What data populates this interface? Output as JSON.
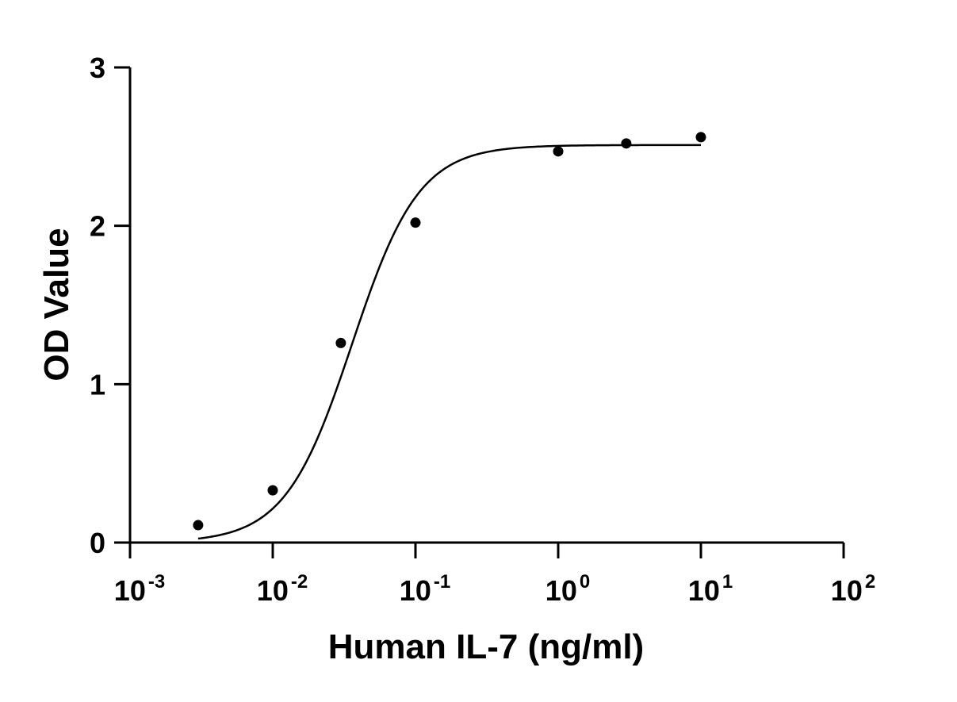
{
  "chart_data": {
    "type": "scatter",
    "title": "",
    "xlabel": "Human IL-7 (ng/ml)",
    "ylabel": "OD Value",
    "x_scale": "log10",
    "xlim": [
      0.001,
      100
    ],
    "ylim": [
      0,
      3
    ],
    "x_ticks": [
      {
        "value": 0.001,
        "base": "10",
        "exp": "-3"
      },
      {
        "value": 0.01,
        "base": "10",
        "exp": "-2"
      },
      {
        "value": 0.1,
        "base": "10",
        "exp": "-1"
      },
      {
        "value": 1,
        "base": "10",
        "exp": "0"
      },
      {
        "value": 10,
        "base": "10",
        "exp": "1"
      },
      {
        "value": 100,
        "base": "10",
        "exp": "2"
      }
    ],
    "y_ticks": [
      {
        "value": 0,
        "label": "0"
      },
      {
        "value": 1,
        "label": "1"
      },
      {
        "value": 2,
        "label": "2"
      },
      {
        "value": 3,
        "label": "3"
      }
    ],
    "grid": false,
    "legend": "none",
    "series": [
      {
        "x": [
          0.003,
          0.01,
          0.03,
          0.1,
          1,
          3,
          10
        ],
        "y": [
          0.11,
          0.33,
          1.26,
          2.02,
          2.47,
          2.52,
          2.56
        ]
      }
    ],
    "fit": {
      "model": "4PL",
      "bottom": 0.0,
      "top": 2.51,
      "ec50": 0.036,
      "hill": 1.85,
      "x_range": [
        0.003,
        10
      ]
    },
    "colors": {
      "points": "#000000",
      "curve": "#000000",
      "axes": "#000000"
    }
  }
}
